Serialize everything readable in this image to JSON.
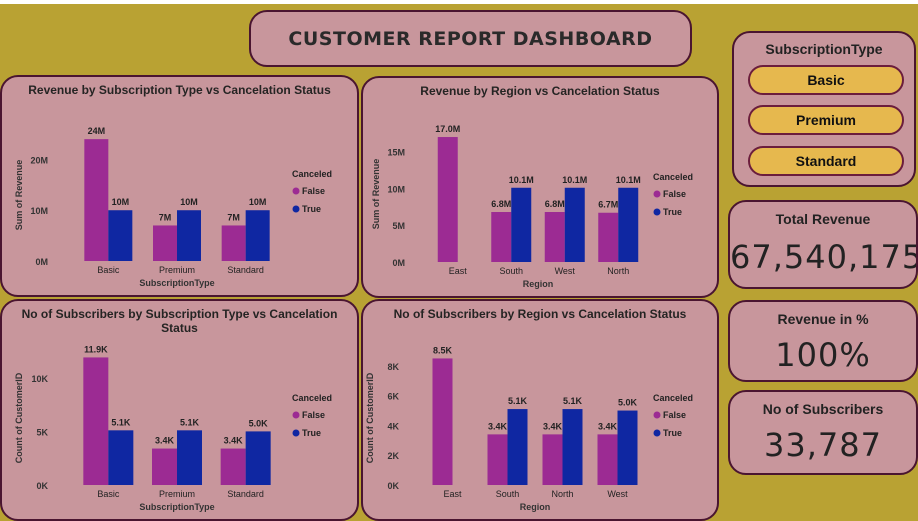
{
  "dashboard": {
    "title": "CUSTOMER REPORT DASHBOARD"
  },
  "slicer": {
    "title": "SubscriptionType",
    "options": [
      "Basic",
      "Premium",
      "Standard"
    ],
    "button_color": "#e6b84e"
  },
  "kpis": {
    "total_revenue": {
      "label": "Total Revenue",
      "value": "67,540,175"
    },
    "revenue_pct": {
      "label": "Revenue in %",
      "value": "100%"
    },
    "subscribers": {
      "label": "No of Subscribers",
      "value": "33,787"
    }
  },
  "colors": {
    "false": "#9c2b93",
    "true": "#0f27a2",
    "panel": "#c8969c",
    "background": "#b9a233"
  },
  "chart_data": [
    {
      "type": "bar",
      "title": "Revenue by Subscription Type vs Cancelation Status",
      "xlabel": "SubscriptionType",
      "ylabel": "Sum of Revenue",
      "categories": [
        "Basic",
        "Premium",
        "Standard"
      ],
      "series": [
        {
          "name": "False",
          "values": [
            24000000,
            7000000,
            7000000
          ],
          "labels": [
            "24M",
            "7M",
            "7M"
          ]
        },
        {
          "name": "True",
          "values": [
            10000000,
            10000000,
            10000000
          ],
          "labels": [
            "10M",
            "10M",
            "10M"
          ]
        }
      ],
      "ylim": [
        0,
        26000000
      ],
      "yticks": [
        0,
        10000000,
        20000000
      ],
      "ytick_labels": [
        "0M",
        "10M",
        "20M"
      ],
      "legend_title": "Canceled",
      "legend": [
        "False",
        "True"
      ]
    },
    {
      "type": "bar",
      "title": "Revenue by Region vs Cancelation Status",
      "xlabel": "Region",
      "ylabel": "Sum of Revenue",
      "categories": [
        "East",
        "South",
        "West",
        "North"
      ],
      "series": [
        {
          "name": "False",
          "values": [
            17000000,
            6800000,
            6800000,
            6700000
          ],
          "labels": [
            "17.0M",
            "6.8M",
            "6.8M",
            "6.7M"
          ]
        },
        {
          "name": "True",
          "values": [
            null,
            10100000,
            10100000,
            10100000
          ],
          "labels": [
            "",
            "10.1M",
            "10.1M",
            "10.1M"
          ]
        }
      ],
      "ylim": [
        0,
        18500000
      ],
      "yticks": [
        0,
        5000000,
        10000000,
        15000000
      ],
      "ytick_labels": [
        "0M",
        "5M",
        "10M",
        "15M"
      ],
      "legend_title": "Canceled",
      "legend": [
        "False",
        "True"
      ]
    },
    {
      "type": "bar",
      "title": "No of Subscribers by Subscription Type vs Cancelation Status",
      "xlabel": "SubscriptionType",
      "ylabel": "Count of CustomerID",
      "categories": [
        "Basic",
        "Premium",
        "Standard"
      ],
      "series": [
        {
          "name": "False",
          "values": [
            11900,
            3400,
            3400
          ],
          "labels": [
            "11.9K",
            "3.4K",
            "3.4K"
          ]
        },
        {
          "name": "True",
          "values": [
            5100,
            5100,
            5000
          ],
          "labels": [
            "5.1K",
            "5.1K",
            "5.0K"
          ]
        }
      ],
      "ylim": [
        0,
        12500
      ],
      "yticks": [
        0,
        5000,
        10000
      ],
      "ytick_labels": [
        "0K",
        "5K",
        "10K"
      ],
      "legend_title": "Canceled",
      "legend": [
        "False",
        "True"
      ]
    },
    {
      "type": "bar",
      "title": "No of Subscribers by Region vs Cancelation Status",
      "xlabel": "Region",
      "ylabel": "Count of CustomerID",
      "categories": [
        "East",
        "South",
        "North",
        "West"
      ],
      "series": [
        {
          "name": "False",
          "values": [
            8500,
            3400,
            3400,
            3400
          ],
          "labels": [
            "8.5K",
            "3.4K",
            "3.4K",
            "3.4K"
          ]
        },
        {
          "name": "True",
          "values": [
            null,
            5100,
            5100,
            5000
          ],
          "labels": [
            "",
            "5.1K",
            "5.1K",
            "5.0K"
          ]
        }
      ],
      "ylim": [
        0,
        9000
      ],
      "yticks": [
        0,
        2000,
        4000,
        6000,
        8000
      ],
      "ytick_labels": [
        "0K",
        "2K",
        "4K",
        "6K",
        "8K"
      ],
      "legend_title": "Canceled",
      "legend": [
        "False",
        "True"
      ]
    }
  ]
}
